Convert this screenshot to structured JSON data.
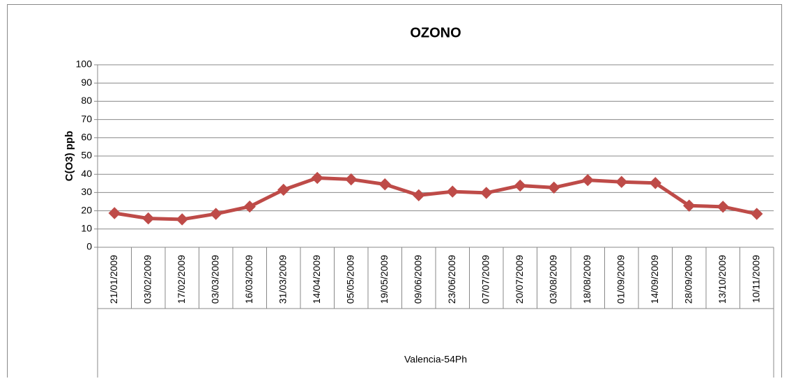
{
  "chart_data": {
    "type": "line",
    "title": "OZONO",
    "y_label": "C(O3) ppb",
    "x_group_label": "Valencia-54Ph",
    "categories": [
      "21/01/2009",
      "03/02/2009",
      "17/02/2009",
      "03/03/2009",
      "16/03/2009",
      "31/03/2009",
      "14/04/2009",
      "05/05/2009",
      "19/05/2009",
      "09/06/2009",
      "23/06/2009",
      "07/07/2009",
      "20/07/2009",
      "03/08/2009",
      "18/08/2009",
      "01/09/2009",
      "14/09/2009",
      "28/09/2009",
      "13/10/2009",
      "10/11/2009"
    ],
    "series": [
      {
        "color": "#be4b48",
        "values": [
          18.7,
          15.8,
          15.3,
          18.3,
          22.3,
          31.5,
          38,
          37.2,
          34.5,
          28.5,
          30.5,
          29.8,
          33.8,
          32.7,
          36.8,
          35.8,
          35.2,
          22.8,
          22.2,
          18.3
        ]
      }
    ],
    "ylim": [
      0,
      100
    ],
    "yticks": [
      0,
      10,
      20,
      30,
      40,
      50,
      60,
      70,
      80,
      90,
      100
    ],
    "grid": true
  }
}
